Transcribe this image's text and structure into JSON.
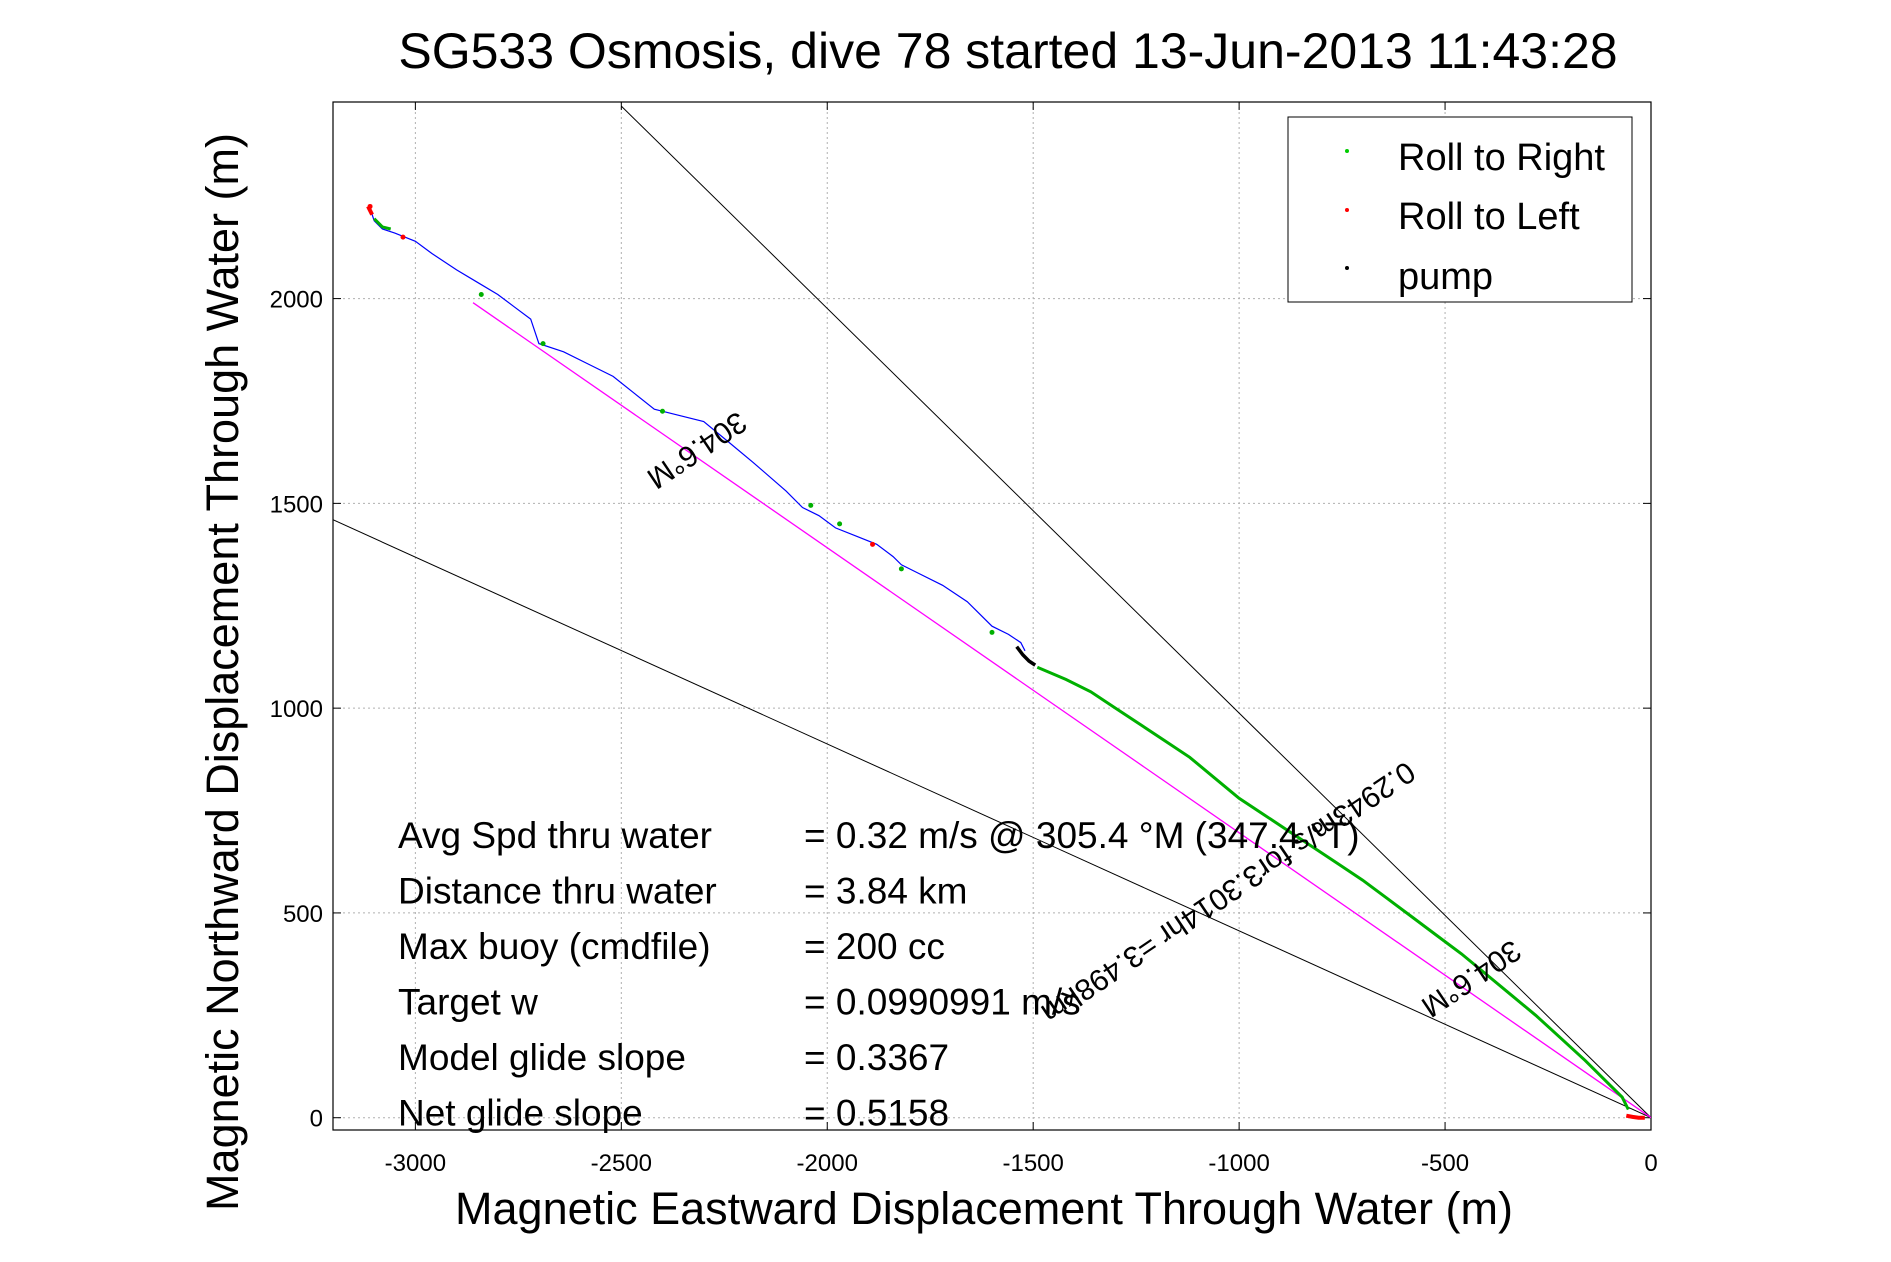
{
  "chart_data": {
    "type": "line",
    "title": "SG533 Osmosis, dive 78 started 13-Jun-2013 11:43:28",
    "xlabel": "Magnetic Eastward Displacement Through Water (m)",
    "ylabel": "Magnetic Northward Displacement Through Water (m)",
    "xlim": [
      -3200,
      0
    ],
    "ylim": [
      -30,
      2480
    ],
    "xticks": [
      -3000,
      -2500,
      -2000,
      -1500,
      -1000,
      -500,
      0
    ],
    "xtick_labels": [
      "-3000",
      "-2500",
      "-2000",
      "-1500",
      "-1000",
      "-500",
      "0"
    ],
    "yticks": [
      0,
      500,
      1000,
      1500,
      2000
    ],
    "ytick_labels": [
      "0",
      "500",
      "1000",
      "1500",
      "2000"
    ],
    "grid": true,
    "legend_position": "top-right",
    "legend": [
      {
        "label": "Roll to Right",
        "color": "#00cc00"
      },
      {
        "label": "Roll to Left",
        "color": "#ff0000"
      },
      {
        "label": "pump",
        "color": "#000000"
      }
    ],
    "colors": {
      "track": "#0000ff",
      "roll_right": "#00b000",
      "roll_left": "#ff0000",
      "pump": "#000000",
      "heading_line": "#ff00ff",
      "envelope": "#000000",
      "grid": "#b0b0b0"
    },
    "track": {
      "x": [
        -3110,
        -3100,
        -3080,
        -3050,
        -3000,
        -2960,
        -2900,
        -2850,
        -2800,
        -2760,
        -2720,
        -2700,
        -2640,
        -2580,
        -2520,
        -2470,
        -2420,
        -2380,
        -2300,
        -2240,
        -2180,
        -2100,
        -2060,
        -2020,
        -1980,
        -1930,
        -1880,
        -1840,
        -1820,
        -1780,
        -1720,
        -1660,
        -1600,
        -1560,
        -1530,
        -1520
      ],
      "y": [
        2220,
        2190,
        2170,
        2160,
        2140,
        2110,
        2070,
        2040,
        2010,
        1980,
        1950,
        1890,
        1870,
        1840,
        1810,
        1770,
        1730,
        1720,
        1700,
        1650,
        1600,
        1530,
        1490,
        1470,
        1440,
        1420,
        1400,
        1370,
        1350,
        1330,
        1300,
        1260,
        1200,
        1180,
        1160,
        1140
      ]
    },
    "right_roll_segments": [
      {
        "x": [
          -3100,
          -3080,
          -3060
        ],
        "y": [
          2195,
          2175,
          2170
        ]
      },
      {
        "x": [
          -1490,
          -1420,
          -1360,
          -1300,
          -1240,
          -1180,
          -1120,
          -1060,
          -1000,
          -940,
          -880,
          -820,
          -760,
          -700,
          -640,
          -580,
          -520,
          -460,
          -400,
          -340,
          -280,
          -220,
          -160,
          -100,
          -70,
          -55
        ],
        "y": [
          1100,
          1070,
          1040,
          1000,
          960,
          920,
          880,
          830,
          780,
          740,
          700,
          660,
          620,
          580,
          535,
          490,
          445,
          400,
          350,
          300,
          250,
          195,
          140,
          80,
          50,
          20
        ]
      }
    ],
    "left_roll_segments": [
      {
        "x": [
          -3115,
          -3105
        ],
        "y": [
          2225,
          2205
        ]
      },
      {
        "x": [
          -60,
          -45,
          -30,
          -15
        ],
        "y": [
          5,
          2,
          0,
          0
        ]
      }
    ],
    "pump_segments": [
      {
        "x": [
          -1540,
          -1525,
          -1510,
          -1495
        ],
        "y": [
          1150,
          1130,
          1115,
          1105
        ]
      }
    ],
    "track_points": {
      "x": [
        -3110,
        -3030,
        -2840,
        -2690,
        -2400,
        -2040,
        -1970,
        -1890,
        -1820,
        -1600
      ],
      "y": [
        2225,
        2150,
        2010,
        1890,
        1725,
        1495,
        1450,
        1400,
        1340,
        1185
      ],
      "colors": [
        "#ff0000",
        "#ff0000",
        "#00b000",
        "#00b000",
        "#00b000",
        "#00b000",
        "#00b000",
        "#ff0000",
        "#00b000",
        "#00b000"
      ]
    },
    "heading_line": {
      "x": [
        -2860,
        0
      ],
      "y": [
        1990,
        0
      ]
    },
    "envelope_lines": [
      {
        "x": [
          -2500,
          0
        ],
        "y": [
          2470,
          0
        ]
      },
      {
        "x": [
          -3200,
          0
        ],
        "y": [
          1460,
          0
        ]
      }
    ],
    "annotations": [
      {
        "text": "304.6°M",
        "x": -2330,
        "y": 1650,
        "rotation": 146
      },
      {
        "text": "0.2943m/s for3.3014hr =3.498km",
        "x": -1040,
        "y": 570,
        "rotation": 146
      },
      {
        "text": "304.6°M",
        "x": -450,
        "y": 360,
        "rotation": 146
      }
    ],
    "stats": [
      {
        "label": "Avg Spd thru water",
        "value": "=  0.32 m/s @ 305.4 °M (347.4 °T)"
      },
      {
        "label": "Distance thru water",
        "value": "=  3.84 km"
      },
      {
        "label": "Max buoy (cmdfile)",
        "value": "= 200 cc"
      },
      {
        "label": "Target w",
        "value": "= 0.0990991 m/s"
      },
      {
        "label": "Model glide slope",
        "value": "= 0.3367"
      },
      {
        "label": "Net glide slope",
        "value": "= 0.5158"
      }
    ]
  }
}
